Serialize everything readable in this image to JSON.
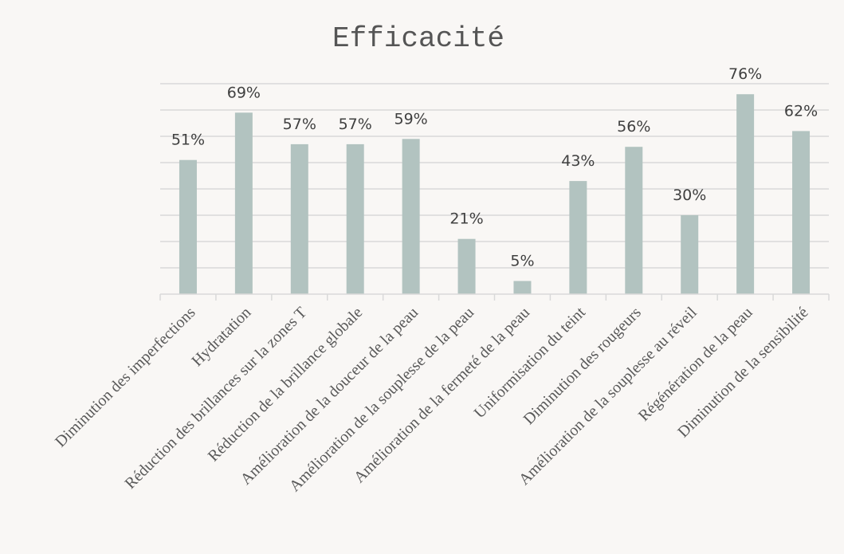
{
  "chart_data": {
    "type": "bar",
    "title": "Efficacité",
    "categories": [
      "Diminution des imperfections",
      "Hydratation",
      "Réduction des brillances sur la zones T",
      "Réduction de la brillance globale",
      "Amélioration de la douceur de la peau",
      "Amélioration de la souplesse de la peau",
      "Amélioration de la fermeté de la peau",
      "Uniformisation du teint",
      "Diminution des rougeurs",
      "Amélioration de la souplesse au réveil",
      "Régénération de la peau",
      "Diminution de la sensibilité"
    ],
    "values": [
      51,
      69,
      57,
      57,
      59,
      21,
      5,
      43,
      56,
      30,
      76,
      62
    ],
    "data_labels": [
      "51%",
      "69%",
      "57%",
      "57%",
      "59%",
      "21%",
      "5%",
      "43%",
      "56%",
      "30%",
      "76%",
      "62%"
    ],
    "xlabel": "",
    "ylabel": "",
    "ylim": [
      0,
      80
    ],
    "grid": true,
    "legend": "none",
    "bar_color": "#b2c3c0",
    "grid_color": "#d9d9d9",
    "background": "#f9f7f5"
  }
}
